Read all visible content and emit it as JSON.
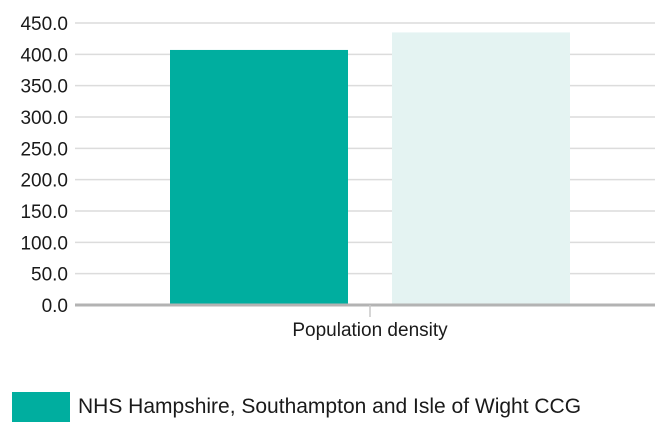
{
  "chart_data": {
    "type": "bar",
    "categories": [
      "Population density"
    ],
    "series": [
      {
        "name": "NHS Hampshire, Southampton and Isle of Wight CCG",
        "values": [
          407.0
        ],
        "color": "#00ae9f"
      },
      {
        "values": [
          435.0
        ],
        "color": "#e4f3f2"
      }
    ],
    "ylim": [
      0,
      450
    ],
    "yticks": [
      "0.0",
      "50.0",
      "100.0",
      "150.0",
      "200.0",
      "250.0",
      "300.0",
      "350.0",
      "400.0",
      "450.0"
    ],
    "grid": true,
    "legend_position": "bottom-left"
  },
  "legend": {
    "label": "NHS Hampshire, Southampton and Isle of Wight CCG",
    "color": "#00ae9f"
  }
}
